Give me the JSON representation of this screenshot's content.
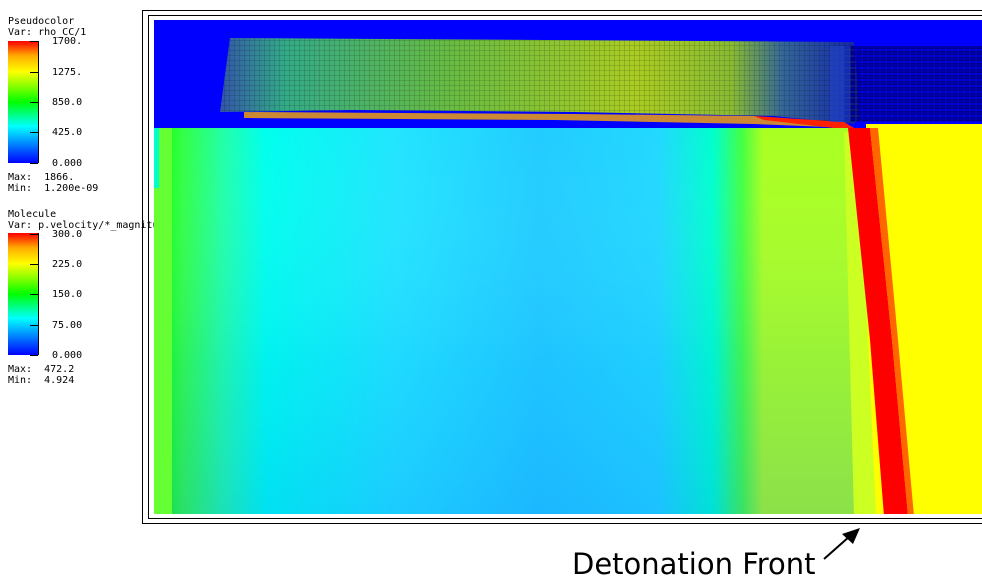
{
  "legend_pseudocolor": {
    "plot_type": "Pseudocolor",
    "var_line": "Var: rho_CC/1",
    "ticks": [
      "1700.",
      "1275.",
      "850.0",
      "425.0",
      "0.000"
    ],
    "max_line": "Max:  1866.",
    "min_line": "Min:  1.200e-09"
  },
  "legend_molecule": {
    "plot_type": "Molecule",
    "var_line": "Var: p.velocity/*_magnitude",
    "ticks": [
      "300.0",
      "225.0",
      "150.0",
      "75.00",
      "0.000"
    ],
    "max_line": "Max:  472.2",
    "min_line": "Min:  4.924"
  },
  "annotation": {
    "text": "Detonation Front"
  },
  "colors": {
    "blue": "#0000ff",
    "cyan": "#00ffff",
    "green": "#00ff00",
    "yellow": "#ffff00",
    "red": "#ff0000",
    "field_cyan": "#22d8ff",
    "field_blue": "#1aa6ff"
  },
  "icons": {
    "annotation_arrow": "arrow-up-right-icon"
  }
}
